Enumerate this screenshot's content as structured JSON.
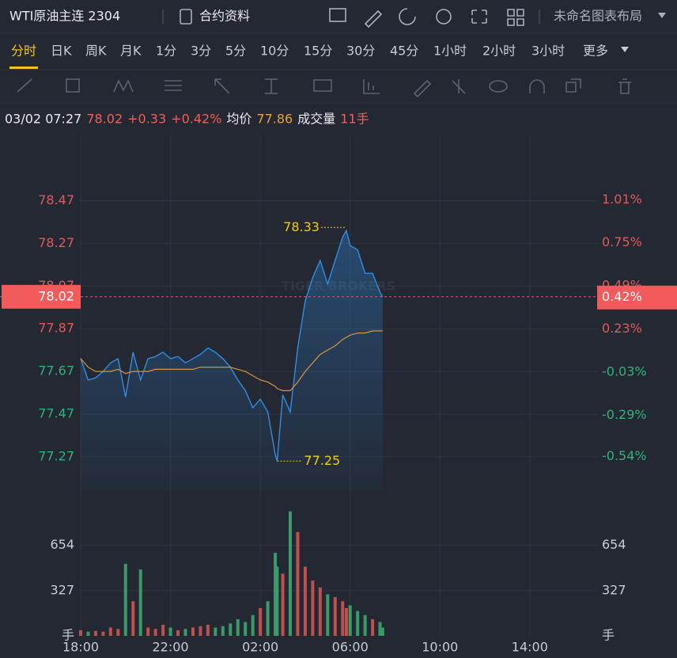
{
  "header": {
    "title": "WTI原油主连 2304",
    "contract_info": "合约资料",
    "layout": "未命名图表布局"
  },
  "tabs": [
    "分时",
    "日K",
    "周K",
    "月K",
    "1分",
    "3分",
    "5分",
    "10分",
    "15分",
    "30分",
    "45分",
    "1小时",
    "2小时",
    "3小时",
    "更多"
  ],
  "info": {
    "datetime": "03/02 07:27",
    "price": "78.02",
    "change": "+0.33",
    "change_pct": "+0.42%",
    "avg_label": "均价",
    "avg": "77.86",
    "vol_label": "成交量",
    "vol": "11手"
  },
  "watermark": "TIGER BROKERS",
  "chart_data": [
    {
      "type": "line",
      "x": [
        "18:00",
        "18:20",
        "18:40",
        "19:00",
        "19:20",
        "19:40",
        "20:00",
        "20:20",
        "20:40",
        "21:00",
        "21:20",
        "21:40",
        "22:00",
        "22:20",
        "22:40",
        "23:00",
        "23:20",
        "23:40",
        "00:00",
        "00:20",
        "00:40",
        "01:00",
        "01:20",
        "01:40",
        "02:00",
        "02:20",
        "02:40",
        "02:45",
        "03:00",
        "03:20",
        "03:40",
        "04:00",
        "04:20",
        "04:40",
        "05:00",
        "05:20",
        "05:40",
        "05:50",
        "06:00",
        "06:20",
        "06:40",
        "07:00",
        "07:20",
        "07:27"
      ],
      "series": [
        {
          "color": "#2f8de4",
          "values": [
            77.73,
            77.63,
            77.64,
            77.67,
            77.71,
            77.73,
            77.55,
            77.76,
            77.63,
            77.73,
            77.74,
            77.76,
            77.73,
            77.74,
            77.71,
            77.73,
            77.75,
            77.78,
            77.76,
            77.73,
            77.69,
            77.63,
            77.58,
            77.5,
            77.54,
            77.48,
            77.28,
            77.25,
            77.56,
            77.48,
            77.78,
            78.0,
            78.11,
            78.19,
            78.08,
            78.19,
            78.3,
            78.33,
            78.26,
            78.24,
            78.13,
            78.13,
            78.04,
            78.02
          ]
        },
        {
          "color": "#d8953a",
          "values": [
            77.73,
            77.69,
            77.67,
            77.67,
            77.67,
            77.68,
            77.66,
            77.67,
            77.67,
            77.67,
            77.68,
            77.68,
            77.68,
            77.68,
            77.68,
            77.68,
            77.69,
            77.69,
            77.69,
            77.69,
            77.69,
            77.68,
            77.67,
            77.65,
            77.63,
            77.62,
            77.6,
            77.59,
            77.58,
            77.58,
            77.62,
            77.67,
            77.71,
            77.75,
            77.77,
            77.79,
            77.82,
            77.83,
            77.84,
            77.85,
            77.85,
            77.86,
            77.86,
            77.86
          ]
        }
      ],
      "xlim": [
        "18:00",
        "17:00"
      ],
      "xticks": [
        "18:00",
        "22:00",
        "02:00",
        "06:00",
        "10:00",
        "14:00"
      ],
      "ylim": [
        77.11,
        78.78
      ],
      "yticks": [
        78.47,
        78.27,
        78.07,
        77.87,
        77.67,
        77.47,
        77.27
      ],
      "y2lim": [
        -0.747,
        1.403
      ],
      "y2ticks": [
        {
          "value": 1.01,
          "label": "1.01%"
        },
        {
          "value": 0.75,
          "label": "0.75%"
        },
        {
          "value": 0.49,
          "label": "0.49%"
        },
        {
          "value": 0.23,
          "label": "0.23%"
        },
        {
          "value": -0.03,
          "label": "-0.03%"
        },
        {
          "value": -0.29,
          "label": "-0.29%"
        },
        {
          "value": -0.54,
          "label": "-0.54%"
        }
      ],
      "last_price": 78.02,
      "last_percent": {
        "value": 0.42,
        "label": "0.42%"
      },
      "annotations": [
        {
          "x": "05:50",
          "value": 78.33
        },
        {
          "x": "02:45",
          "value": 77.25
        }
      ],
      "grid": true
    },
    {
      "type": "bar",
      "values": [
        40,
        30,
        35,
        30,
        60,
        50,
        520,
        250,
        480,
        60,
        50,
        80,
        60,
        40,
        50,
        60,
        70,
        80,
        60,
        70,
        90,
        120,
        100,
        150,
        200,
        250,
        600,
        500,
        450,
        900,
        750,
        500,
        400,
        350,
        300,
        280,
        250,
        200,
        220,
        180,
        150,
        120,
        100,
        60
      ],
      "up_color": "#c0504d",
      "down_color": "#3a9a6a",
      "ylim": [
        0,
        990
      ],
      "yticks": [
        327,
        654
      ],
      "unit": "手"
    }
  ]
}
